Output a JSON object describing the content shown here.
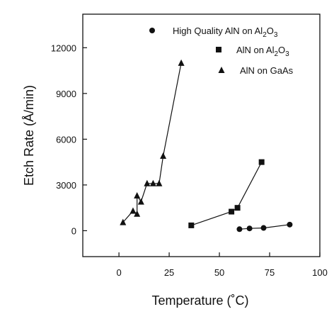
{
  "chart_data": {
    "type": "scatter",
    "xlabel": "Temperature (˚C)",
    "ylabel": "Etch Rate (Å/min)",
    "xlim": [
      -18,
      100
    ],
    "ylim": [
      -1700,
      14200
    ],
    "xticks": [
      0,
      25,
      50,
      75,
      100
    ],
    "yticks": [
      0,
      3000,
      6000,
      9000,
      12000
    ],
    "x_tick_labels": [
      "0",
      "25",
      "50",
      "75",
      "100"
    ],
    "y_tick_labels": [
      "0",
      "3000",
      "6000",
      "9000",
      "12000"
    ],
    "grid": false,
    "legend_position": "top-right",
    "series": [
      {
        "name": "High Quality AlN on Al2O3",
        "legend_parts": [
          "High Quality AlN on Al",
          "2",
          "O",
          "3"
        ],
        "marker": "circle",
        "connected": true,
        "points": [
          [
            60,
            100
          ],
          [
            65,
            150
          ],
          [
            72,
            180
          ],
          [
            85,
            400
          ]
        ]
      },
      {
        "name": "AlN on Al2O3",
        "legend_parts": [
          "AlN on Al",
          "2",
          "O",
          "3"
        ],
        "marker": "square",
        "connected": true,
        "points": [
          [
            36,
            350
          ],
          [
            56,
            1250
          ],
          [
            59,
            1500
          ],
          [
            71,
            4500
          ]
        ]
      },
      {
        "name": "AlN on GaAs",
        "legend_parts": [
          "AlN on GaAs",
          "",
          "",
          ""
        ],
        "marker": "triangle",
        "connected": true,
        "points": [
          [
            2,
            550
          ],
          [
            7,
            1300
          ],
          [
            9,
            1100
          ],
          [
            9,
            2300
          ],
          [
            11,
            1900
          ],
          [
            14,
            3100
          ],
          [
            17,
            3100
          ],
          [
            20,
            3100
          ],
          [
            22,
            4900
          ],
          [
            31,
            11000
          ]
        ]
      }
    ]
  },
  "colors": {
    "ink": "#111111",
    "background": "#ffffff"
  }
}
